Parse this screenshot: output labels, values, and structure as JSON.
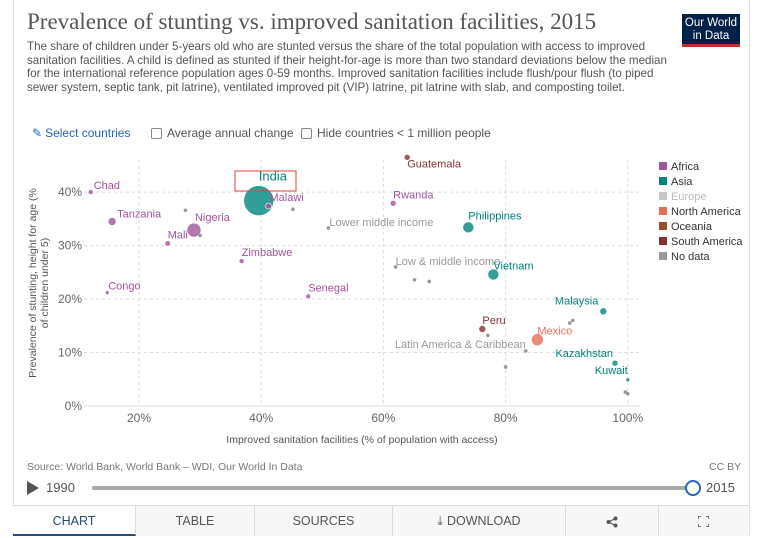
{
  "header": {
    "title": "Prevalence of stunting vs. improved sanitation facilities, 2015",
    "subtitle": "The share of children under 5-years old who are stunted versus the share of the total population with access to improved sanitation facilities. A child is defined as stunted if their height-for-age is more than two standard deviations below the median for the international reference population ages 0-59 months. Improved sanitation facilities include flush/pour flush (to piped sewer system, septic tank, pit latrine), ventilated improved pit (VIP) latrine, pit latrine with slab, and composting toilet.",
    "logo_line1": "Our World",
    "logo_line2": "in Data"
  },
  "controls": {
    "select_countries": "Select countries",
    "average_annual_change": "Average annual change",
    "hide_small": "Hide countries < 1 million people"
  },
  "colors": {
    "Africa": "#a2559c",
    "Asia": "#00847e",
    "Europe": "#c8c8c8",
    "North America": "#e56e5a",
    "Oceania": "#9a5129",
    "South America": "#883039",
    "No data": "#999999"
  },
  "chart_data": {
    "type": "scatter",
    "xlabel": "Improved sanitation facilities (% of population with access)",
    "ylabel": "Prevalence of stunting, height for age (% of children under 5)",
    "xlim": [
      11,
      102
    ],
    "ylim": [
      0,
      46
    ],
    "xticks": [
      20,
      40,
      60,
      80,
      100
    ],
    "xtick_labels": [
      "20%",
      "40%",
      "60%",
      "80%",
      "100%"
    ],
    "yticks": [
      0,
      10,
      20,
      30,
      40
    ],
    "ytick_labels": [
      "0%",
      "10%",
      "20%",
      "30%",
      "40%"
    ],
    "grid": true,
    "legend": {
      "position": "right",
      "entries": [
        "Africa",
        "Asia",
        "Europe",
        "North America",
        "Oceania",
        "South America",
        "No data"
      ]
    },
    "points": [
      {
        "label": "Chad",
        "x": 12.1,
        "y": 40.0,
        "region": "Africa",
        "size": 2.5
      },
      {
        "label": "Tanzania",
        "x": 15.6,
        "y": 34.5,
        "region": "Africa",
        "size": 4
      },
      {
        "label": "Nigeria",
        "x": 29.0,
        "y": 32.9,
        "region": "Africa",
        "size": 7
      },
      {
        "label": "Mali",
        "x": 24.7,
        "y": 30.4,
        "region": "Africa",
        "size": 2.8
      },
      {
        "label": "Zimbabwe",
        "x": 36.8,
        "y": 27.1,
        "region": "Africa",
        "size": 2.5
      },
      {
        "label": "Congo",
        "x": 14.8,
        "y": 21.2,
        "region": "Africa",
        "size": 2
      },
      {
        "label": "Malawi",
        "x": 41.2,
        "y": 37.4,
        "region": "Africa",
        "size": 3
      },
      {
        "label": "Senegal",
        "x": 47.7,
        "y": 20.5,
        "region": "Africa",
        "size": 2.5
      },
      {
        "label": "India",
        "x": 39.6,
        "y": 38.4,
        "region": "Asia",
        "size": 15
      },
      {
        "label": "Philippines",
        "x": 73.9,
        "y": 33.4,
        "region": "Asia",
        "size": 5.5
      },
      {
        "label": "Vietnam",
        "x": 78.0,
        "y": 24.6,
        "region": "Asia",
        "size": 5.5
      },
      {
        "label": "Malaysia",
        "x": 96.0,
        "y": 17.7,
        "region": "Asia",
        "size": 3.5
      },
      {
        "label": "Kazakhstan",
        "x": 97.9,
        "y": 8.0,
        "region": "Asia",
        "size": 3
      },
      {
        "label": "Kuwait",
        "x": 100.0,
        "y": 4.9,
        "region": "Asia",
        "size": 2
      },
      {
        "label": "Guatemala",
        "x": 63.9,
        "y": 46.5,
        "region": "South America",
        "size": 3
      },
      {
        "label": "Rwanda",
        "x": 61.6,
        "y": 37.9,
        "region": "Africa",
        "size": 3
      },
      {
        "label": "Peru",
        "x": 76.2,
        "y": 14.4,
        "region": "South America",
        "size": 3.5
      },
      {
        "label": "Mexico",
        "x": 85.2,
        "y": 12.4,
        "region": "North America",
        "size": 6
      },
      {
        "label": "Lower middle income",
        "x": 51.0,
        "y": 33.3,
        "region": "No data",
        "size": 1.8
      },
      {
        "label": "Low & middle income",
        "x": 62.0,
        "y": 26.0,
        "region": "No data",
        "size": 1.8
      },
      {
        "label": "Latin America & Caribbean",
        "x": 83.3,
        "y": 10.3,
        "region": "No data",
        "size": 1.8
      },
      {
        "label": "",
        "x": 27.6,
        "y": 36.6,
        "region": "No data",
        "size": 1.8
      },
      {
        "label": "",
        "x": 30.0,
        "y": 31.9,
        "region": "No data",
        "size": 1.8
      },
      {
        "label": "",
        "x": 45.2,
        "y": 36.8,
        "region": "No data",
        "size": 1.8
      },
      {
        "label": "",
        "x": 65.1,
        "y": 23.6,
        "region": "No data",
        "size": 1.8
      },
      {
        "label": "",
        "x": 67.5,
        "y": 23.3,
        "region": "No data",
        "size": 1.8
      },
      {
        "label": "",
        "x": 77.1,
        "y": 13.2,
        "region": "No data",
        "size": 1.8
      },
      {
        "label": "",
        "x": 80.0,
        "y": 7.3,
        "region": "No data",
        "size": 1.8
      },
      {
        "label": "",
        "x": 90.5,
        "y": 15.5,
        "region": "No data",
        "size": 1.8
      },
      {
        "label": "",
        "x": 91.0,
        "y": 16.0,
        "region": "No data",
        "size": 1.8
      },
      {
        "label": "",
        "x": 99.6,
        "y": 2.6,
        "region": "No data",
        "size": 1.8
      },
      {
        "label": "",
        "x": 100.0,
        "y": 2.3,
        "region": "No data",
        "size": 1.8
      }
    ]
  },
  "footer": {
    "source": "Source: World Bank, World Bank – WDI, Our World In Data",
    "license": "CC BY",
    "year_start": "1990",
    "year_end": "2015",
    "slider_fraction": 1.0
  },
  "tabs": [
    {
      "label": "CHART",
      "icon": ""
    },
    {
      "label": "TABLE",
      "icon": ""
    },
    {
      "label": "SOURCES",
      "icon": ""
    },
    {
      "label": "DOWNLOAD",
      "icon": "download-icon"
    },
    {
      "label": "",
      "icon": "share-icon"
    },
    {
      "label": "",
      "icon": "fullscreen-icon"
    }
  ]
}
